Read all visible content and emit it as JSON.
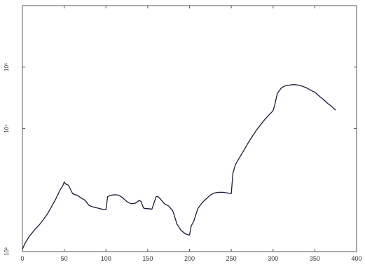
{
  "chart_data": {
    "type": "line",
    "title": "",
    "xlabel": "",
    "ylabel": "",
    "xlim": [
      0,
      400
    ],
    "ylim": [
      100,
      1000000
    ],
    "yscale": "log",
    "grid": false,
    "legend": "none",
    "xticks": [
      0,
      50,
      100,
      150,
      200,
      250,
      300,
      350,
      400
    ],
    "xtick_labels": [
      "0",
      "50",
      "100",
      "150",
      "200",
      "250",
      "300",
      "350",
      "400"
    ],
    "yticks": [
      100,
      10000,
      100000
    ],
    "ytick_labels": [
      "10²",
      "10⁴",
      "10⁵"
    ],
    "line_color": "#1a1a3a",
    "series": [
      {
        "x": [
          0,
          3,
          8,
          15,
          20,
          25,
          30,
          35,
          40,
          45,
          48,
          50,
          52,
          55,
          58,
          60,
          62,
          65,
          70,
          75,
          80,
          85,
          90,
          95,
          100,
          102,
          105,
          110,
          115,
          120,
          125,
          130,
          135,
          140,
          142,
          145,
          147,
          150,
          155,
          160,
          162,
          165,
          170,
          175,
          180,
          185,
          190,
          195,
          200,
          202,
          205,
          210,
          215,
          220,
          225,
          230,
          235,
          240,
          245,
          250,
          252,
          255,
          260,
          265,
          270,
          275,
          280,
          285,
          290,
          295,
          300,
          302,
          305,
          310,
          315,
          320,
          325,
          330,
          335,
          340,
          345,
          350,
          355,
          360,
          365,
          370,
          375
        ],
        "y": [
          110,
          135,
          175,
          230,
          270,
          330,
          410,
          540,
          720,
          1000,
          1150,
          1350,
          1250,
          1200,
          1000,
          880,
          850,
          830,
          750,
          680,
          560,
          530,
          510,
          490,
          480,
          780,
          820,
          840,
          830,
          750,
          650,
          600,
          610,
          680,
          650,
          510,
          500,
          500,
          490,
          780,
          790,
          720,
          600,
          550,
          460,
          280,
          220,
          195,
          185,
          260,
          310,
          500,
          620,
          720,
          830,
          900,
          920,
          920,
          900,
          880,
          1900,
          2600,
          3400,
          4400,
          5800,
          7400,
          9400,
          11500,
          14000,
          16600,
          19500,
          24000,
          37000,
          46000,
          50000,
          51000,
          52000,
          51000,
          49000,
          46000,
          42000,
          39000,
          34000,
          30000,
          26000,
          23000,
          20000
        ]
      }
    ]
  }
}
